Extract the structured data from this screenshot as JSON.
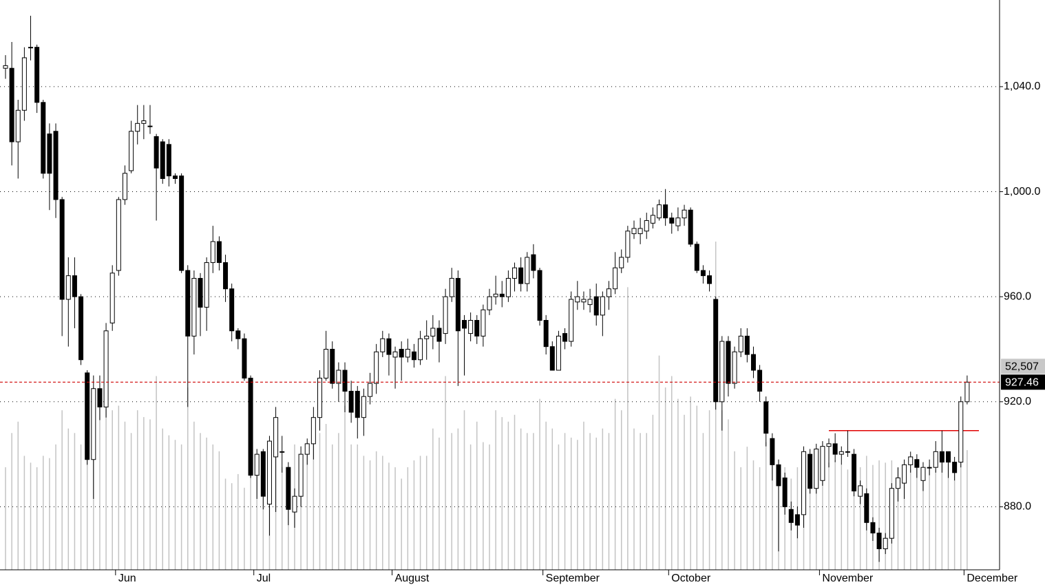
{
  "chart_data": {
    "type": "candlestick",
    "categories": [
      null,
      null,
      null,
      null,
      null,
      null,
      null,
      null,
      null,
      null,
      null,
      null,
      null,
      null,
      null,
      null,
      null,
      null,
      "Jun",
      null,
      null,
      null,
      null,
      null,
      null,
      null,
      null,
      null,
      null,
      null,
      null,
      null,
      null,
      null,
      null,
      null,
      null,
      null,
      null,
      null,
      "Jul",
      null,
      null,
      null,
      null,
      null,
      null,
      null,
      null,
      null,
      null,
      null,
      null,
      null,
      null,
      null,
      null,
      null,
      null,
      null,
      null,
      null,
      "August",
      null,
      null,
      null,
      null,
      null,
      null,
      null,
      null,
      null,
      null,
      null,
      null,
      null,
      null,
      null,
      null,
      null,
      null,
      null,
      null,
      null,
      null,
      null,
      "September",
      null,
      null,
      null,
      null,
      null,
      null,
      null,
      null,
      null,
      null,
      null,
      null,
      null,
      null,
      null,
      null,
      null,
      null,
      null,
      "October",
      null,
      null,
      null,
      null,
      null,
      null,
      null,
      null,
      null,
      null,
      null,
      null,
      null,
      null,
      null,
      null,
      null,
      null,
      null,
      null,
      null,
      null,
      null,
      "November",
      null,
      null,
      null,
      null,
      null,
      null,
      null,
      null,
      null,
      null,
      null,
      null,
      null,
      null,
      null,
      null,
      null,
      null,
      null,
      null,
      null,
      null,
      "December"
    ],
    "open": [
      1047,
      1047,
      1019,
      1031,
      1055,
      1055,
      1034,
      1022,
      1023,
      997,
      959,
      968,
      960,
      931,
      898,
      925,
      918,
      950,
      970,
      997,
      1008,
      1023,
      1026,
      1025,
      1021,
      1019,
      1018,
      1006,
      1006,
      970,
      945,
      967,
      956,
      973,
      981,
      973,
      963,
      947,
      944,
      929,
      892,
      901,
      881,
      899,
      901,
      895,
      878,
      884,
      900,
      904,
      914,
      929,
      940,
      927,
      932,
      924,
      924,
      914,
      922,
      927,
      939,
      944,
      937,
      940,
      937,
      939,
      936,
      944,
      945,
      948,
      946,
      960,
      967,
      951,
      946,
      951,
      945,
      955,
      960,
      961,
      960,
      967,
      971,
      965,
      976,
      970,
      951,
      941,
      932,
      946,
      943,
      958,
      958,
      957,
      960,
      953,
      960,
      963,
      971,
      975,
      984,
      984,
      985,
      988,
      990,
      995,
      990,
      987,
      990,
      993,
      980,
      970,
      968,
      959,
      920,
      943,
      927,
      939,
      945,
      938,
      932,
      920,
      906,
      896,
      891,
      879,
      877,
      877,
      900,
      887,
      890,
      903,
      904,
      900,
      901,
      900,
      884,
      885,
      874,
      870,
      864,
      868,
      887,
      889,
      896,
      898,
      890,
      895,
      895,
      901,
      901,
      897,
      897,
      920
    ],
    "high": [
      1052,
      1057,
      1035,
      1055,
      1067,
      1056,
      1035,
      1026,
      1026,
      998,
      975,
      975,
      961,
      932,
      930,
      930,
      950,
      972,
      998,
      1010,
      1027,
      1033,
      1033,
      1033,
      1022,
      1020,
      1020,
      1007,
      1007,
      972,
      970,
      969,
      975,
      987,
      983,
      976,
      965,
      948,
      946,
      930,
      902,
      902,
      907,
      918,
      907,
      897,
      887,
      903,
      906,
      918,
      932,
      947,
      943,
      935,
      935,
      928,
      926,
      925,
      931,
      942,
      947,
      946,
      941,
      943,
      944,
      942,
      947,
      951,
      953,
      951,
      963,
      971,
      970,
      953,
      954,
      953,
      957,
      963,
      968,
      966,
      970,
      973,
      975,
      977,
      980,
      971,
      953,
      943,
      947,
      948,
      962,
      966,
      962,
      963,
      965,
      962,
      966,
      977,
      978,
      987,
      989,
      990,
      992,
      994,
      997,
      1001,
      992,
      994,
      995,
      994,
      981,
      972,
      970,
      960,
      945,
      945,
      941,
      948,
      948,
      941,
      934,
      922,
      908,
      898,
      893,
      882,
      880,
      903,
      902,
      904,
      905,
      906,
      908,
      903,
      909,
      902,
      890,
      887,
      876,
      872,
      870,
      889,
      895,
      898,
      901,
      900,
      897,
      898,
      905,
      909,
      899,
      899,
      922,
      930
    ],
    "low": [
      1043,
      1010,
      1005,
      1027,
      1050,
      1030,
      1005,
      993,
      990,
      945,
      941,
      948,
      934,
      896,
      883,
      913,
      914,
      947,
      968,
      995,
      1007,
      1018,
      1020,
      1022,
      989,
      1003,
      1002,
      1003,
      969,
      918,
      938,
      945,
      947,
      969,
      970,
      958,
      943,
      940,
      928,
      891,
      883,
      879,
      869,
      878,
      893,
      873,
      872,
      880,
      896,
      898,
      909,
      928,
      925,
      920,
      916,
      912,
      906,
      907,
      919,
      923,
      937,
      930,
      925,
      928,
      935,
      933,
      934,
      936,
      940,
      935,
      942,
      958,
      926,
      930,
      943,
      942,
      941,
      953,
      957,
      956,
      958,
      962,
      962,
      962,
      967,
      949,
      938,
      932,
      932,
      940,
      941,
      955,
      955,
      954,
      949,
      945,
      955,
      961,
      969,
      973,
      982,
      980,
      982,
      986,
      989,
      987,
      984,
      985,
      987,
      979,
      969,
      965,
      962,
      917,
      909,
      922,
      925,
      937,
      935,
      929,
      920,
      903,
      890,
      863,
      877,
      871,
      868,
      872,
      885,
      885,
      888,
      895,
      897,
      896,
      899,
      884,
      881,
      871,
      867,
      859,
      862,
      866,
      882,
      883,
      893,
      891,
      886,
      892,
      893,
      893,
      891,
      890,
      895,
      919
    ],
    "close": [
      1048,
      1019,
      1031,
      1051,
      1055,
      1034,
      1007,
      1007,
      997,
      959,
      968,
      960,
      936,
      898,
      925,
      918,
      947,
      969,
      997,
      1007,
      1023,
      1026,
      1027,
      1025,
      1009,
      1005,
      1006,
      1005,
      970,
      945,
      967,
      956,
      973,
      981,
      973,
      963,
      947,
      944,
      929,
      892,
      900,
      884,
      905,
      914,
      901,
      879,
      884,
      900,
      904,
      914,
      929,
      940,
      927,
      932,
      924,
      916,
      914,
      922,
      927,
      939,
      944,
      938,
      939,
      937,
      940,
      936,
      944,
      945,
      948,
      943,
      960,
      967,
      947,
      948,
      951,
      945,
      955,
      960,
      961,
      960,
      967,
      971,
      965,
      975,
      970,
      951,
      941,
      932,
      945,
      943,
      959,
      960,
      959,
      959,
      953,
      960,
      963,
      971,
      975,
      985,
      986,
      986,
      989,
      991,
      995,
      990,
      988,
      990,
      993,
      980,
      970,
      968,
      965,
      920,
      943,
      927,
      939,
      945,
      938,
      932,
      924,
      908,
      896,
      888,
      880,
      874,
      873,
      901,
      887,
      902,
      903,
      904,
      900,
      901,
      901,
      886,
      888,
      874,
      870,
      864,
      868,
      887,
      891,
      896,
      899,
      895,
      895,
      895,
      901,
      897,
      897,
      893,
      920,
      927.46
    ],
    "up_color": "#ffffff",
    "down_color": "#000000",
    "ylim": [
      856,
      1073
    ],
    "yticks": [
      {
        "value": 880,
        "label": "880.0"
      },
      {
        "value": 920,
        "label": "920.0"
      },
      {
        "value": 960,
        "label": "960.0"
      },
      {
        "value": 1000,
        "label": "1,000.0"
      },
      {
        "value": 1040,
        "label": "1,040.0"
      }
    ],
    "grid": true,
    "volume": {
      "color": "#c3c3c3",
      "vlim": [
        0,
        250000
      ],
      "label": "52,507",
      "values": [
        45000,
        60000,
        65000,
        50000,
        47000,
        45000,
        50000,
        49000,
        55000,
        70000,
        62000,
        60000,
        55000,
        68000,
        80000,
        74000,
        71000,
        70000,
        72000,
        65000,
        60000,
        70000,
        67000,
        66000,
        85000,
        62000,
        59000,
        57000,
        55000,
        80000,
        65000,
        60000,
        58000,
        55000,
        52000,
        40000,
        38000,
        42000,
        36000,
        55000,
        45000,
        42000,
        50000,
        60000,
        45000,
        40000,
        55000,
        48000,
        56000,
        62000,
        60000,
        64000,
        55000,
        60000,
        72000,
        55000,
        55000,
        50000,
        48000,
        52000,
        50000,
        47000,
        45000,
        40000,
        45000,
        48000,
        50000,
        50000,
        62000,
        58000,
        85000,
        60000,
        62000,
        70000,
        55000,
        65000,
        56000,
        55000,
        70000,
        67000,
        65000,
        68000,
        62000,
        60000,
        60000,
        75000,
        65000,
        62000,
        55000,
        60000,
        58000,
        57000,
        65000,
        60000,
        58000,
        62000,
        60000,
        75000,
        70000,
        124000,
        62000,
        60000,
        60000,
        68000,
        94000,
        80000,
        85000,
        75000,
        68000,
        76000,
        72000,
        60000,
        70000,
        144000,
        70000,
        66000,
        52000,
        45000,
        54000,
        48000,
        45000,
        56000,
        54000,
        44000,
        45000,
        40000,
        45000,
        43000,
        42000,
        48000,
        45000,
        47000,
        48000,
        46000,
        44000,
        42000,
        45000,
        50000,
        46000,
        48000,
        47000,
        48000,
        45000,
        42000,
        44000,
        48000,
        45000,
        46000,
        44000,
        50000,
        52000,
        44000,
        60000,
        52507
      ]
    },
    "last_price_line": {
      "color": "#d00000"
    },
    "level_line": {
      "value": 909,
      "color": "#e00000",
      "start": 131
    }
  }
}
